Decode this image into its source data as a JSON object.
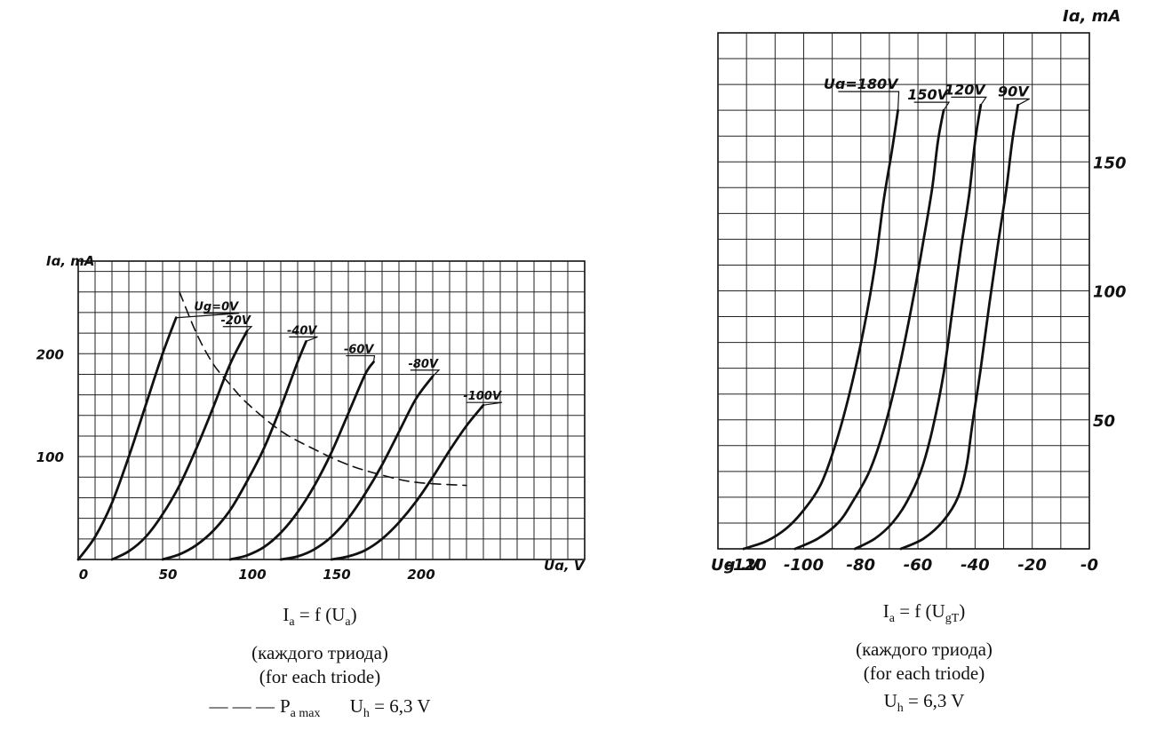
{
  "chart_data": [
    {
      "type": "line",
      "x_unit_label": "Uɑ, V",
      "y_unit_label": "Iɑ, mA",
      "xlim": [
        0,
        300
      ],
      "ylim": [
        0,
        290
      ],
      "x_ticks": [
        0,
        50,
        100,
        150,
        200
      ],
      "y_ticks": [
        100,
        200
      ],
      "grid": true,
      "series": [
        {
          "name": "Ug=0V",
          "x": [
            0,
            10,
            20,
            30,
            40,
            50,
            58
          ],
          "y": [
            0,
            22,
            55,
            100,
            150,
            200,
            235
          ]
        },
        {
          "name": "-20V",
          "x": [
            20,
            30,
            40,
            50,
            60,
            70,
            80,
            90,
            100
          ],
          "y": [
            0,
            8,
            22,
            44,
            72,
            108,
            148,
            190,
            222
          ]
        },
        {
          "name": "-40V",
          "x": [
            50,
            60,
            70,
            80,
            90,
            100,
            110,
            120,
            130,
            135
          ],
          "y": [
            0,
            5,
            14,
            28,
            48,
            76,
            108,
            148,
            192,
            212
          ]
        },
        {
          "name": "-60V",
          "x": [
            90,
            100,
            110,
            120,
            130,
            140,
            150,
            160,
            170,
            175
          ],
          "y": [
            0,
            4,
            12,
            26,
            46,
            72,
            104,
            142,
            180,
            192
          ]
        },
        {
          "name": "-80V",
          "x": [
            120,
            130,
            140,
            150,
            160,
            170,
            180,
            190,
            200,
            210
          ],
          "y": [
            0,
            3,
            10,
            22,
            40,
            64,
            92,
            124,
            156,
            178
          ]
        },
        {
          "name": "-100V",
          "x": [
            150,
            160,
            170,
            180,
            190,
            200,
            210,
            220,
            230,
            240
          ],
          "y": [
            0,
            3,
            9,
            20,
            36,
            56,
            80,
            106,
            130,
            150
          ]
        },
        {
          "name": "P a max",
          "dashed": true,
          "x": [
            60,
            70,
            80,
            90,
            100,
            120,
            140,
            160,
            180,
            200,
            230
          ],
          "y": [
            260,
            220,
            190,
            170,
            152,
            125,
            107,
            92,
            82,
            75,
            72
          ]
        }
      ],
      "caption": {
        "formula_main": "I",
        "formula_sub1": "a",
        "formula_rest": " = f (U",
        "formula_sub2": "a",
        "formula_end": ")",
        "line_ru": "(каждого триода)",
        "line_en": "(for each triode)",
        "legend_dash": "— — —",
        "legend_p": "P",
        "legend_p_sub": "a max",
        "uh_main": "U",
        "uh_sub": "h",
        "uh_value": " = 6,3 V"
      }
    },
    {
      "type": "line",
      "x_unit_label": "Ug .V",
      "y_unit_label": "Iɑ, mA",
      "xlim": [
        -130,
        0
      ],
      "ylim": [
        0,
        200
      ],
      "x_ticks": [
        -120,
        -100,
        -80,
        -60,
        -40,
        -20,
        0
      ],
      "x_tick_labels": [
        "-120",
        "-100",
        "-80",
        "-60",
        "-40",
        "-20",
        "-0"
      ],
      "y_ticks": [
        50,
        100,
        150
      ],
      "grid": true,
      "series": [
        {
          "name": "Uɑ=180V",
          "x": [
            -121,
            -113,
            -106,
            -100,
            -94,
            -89,
            -84,
            -79,
            -75,
            -72,
            -69,
            -67
          ],
          "y": [
            0,
            3,
            8,
            15,
            25,
            40,
            60,
            85,
            110,
            135,
            155,
            170
          ]
        },
        {
          "name": "150V",
          "x": [
            -103,
            -95,
            -88,
            -83,
            -77,
            -72,
            -67,
            -62,
            -58,
            -55,
            -53,
            -51
          ],
          "y": [
            0,
            4,
            10,
            18,
            30,
            46,
            68,
            95,
            120,
            140,
            158,
            170
          ]
        },
        {
          "name": "120V",
          "x": [
            -82,
            -75,
            -69,
            -64,
            -59,
            -55,
            -51,
            -48,
            -45,
            -42,
            -40,
            -38
          ],
          "y": [
            0,
            4,
            10,
            18,
            30,
            46,
            68,
            92,
            116,
            138,
            158,
            172
          ]
        },
        {
          "name": "90V",
          "x": [
            -66,
            -58,
            -51,
            -46,
            -43,
            -41,
            -38,
            -35,
            -32,
            -29,
            -27,
            -25
          ],
          "y": [
            0,
            4,
            11,
            20,
            32,
            48,
            70,
            95,
            118,
            140,
            158,
            172
          ]
        }
      ],
      "caption": {
        "formula_main": "I",
        "formula_sub1": "a",
        "formula_rest": " = f (U",
        "formula_sub2": "gT",
        "formula_end": ")",
        "line_ru": "(каждого триода)",
        "line_en": "(for each triode)",
        "uh_main": "U",
        "uh_sub": "h",
        "uh_value": " = 6,3 V"
      }
    }
  ]
}
